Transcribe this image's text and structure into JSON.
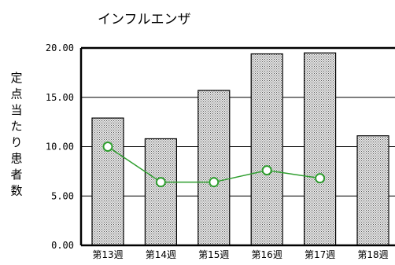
{
  "chart_data": {
    "type": "bar",
    "title": "インフルエンザ",
    "ylabel": "定点当たり患者数",
    "xlabel": "",
    "categories": [
      "第13週",
      "第14週",
      "第15週",
      "第16週",
      "第17週",
      "第18週"
    ],
    "series": [
      {
        "type": "bar",
        "values": [
          12.9,
          10.8,
          15.7,
          19.4,
          19.5,
          11.1
        ]
      },
      {
        "type": "line",
        "values": [
          10.0,
          6.4,
          6.4,
          7.6,
          6.8,
          null
        ]
      }
    ],
    "ylim": [
      0,
      20
    ],
    "yticks": [
      "0.00",
      "5.00",
      "10.00",
      "15.00",
      "20.00"
    ],
    "grid": true,
    "legend": "none",
    "colors": {
      "bar_fill": "#e8e8e8",
      "bar_dots": "#555555",
      "bar_stroke": "#000000",
      "line": "#2f9e2f",
      "marker_fill": "#ffffff",
      "marker_stroke": "#2f9e2f"
    }
  }
}
